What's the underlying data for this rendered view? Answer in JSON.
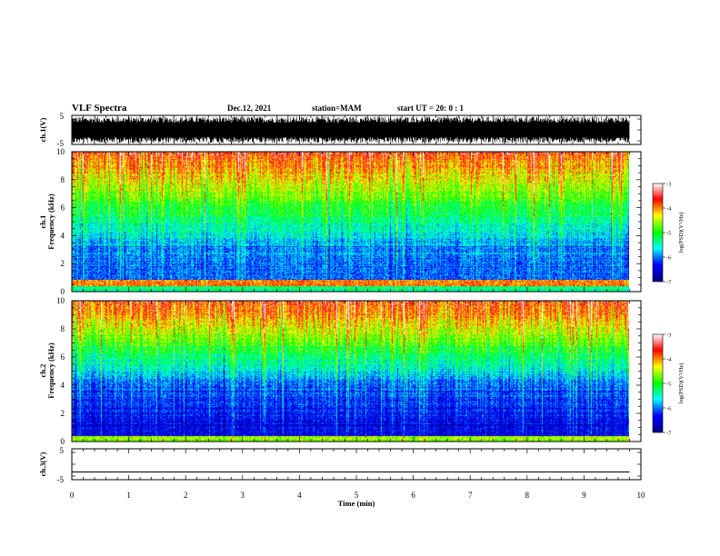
{
  "header": {
    "title": "VLF Spectra",
    "date": "Dec.12, 2021",
    "station": "station=MAM",
    "start_ut": "start  UT =   20: 0  : 1"
  },
  "chart_data": [
    {
      "type": "line",
      "panel": "ch1-waveform",
      "ylabel": "ch.1(V)",
      "ylim": [
        -5,
        5
      ],
      "yticks": [
        "5",
        "-5"
      ],
      "xlim": [
        0,
        10
      ],
      "description_values": {
        "amplitude_range_V": [
          -4.5,
          4.5
        ]
      }
    },
    {
      "type": "heatmap",
      "panel": "ch1-spectrogram",
      "ylabel_line1": "ch.1",
      "ylabel_line2": "Frequency  (kHz)",
      "ylim": [
        0,
        10
      ],
      "yticks": [
        "0",
        "2",
        "4",
        "6",
        "8",
        "10"
      ],
      "xlim": [
        0,
        10
      ],
      "colorbar": {
        "label": "log(PSD)(V²/Hz)",
        "range": [
          -7,
          -3
        ],
        "ticks": [
          "-3",
          "-4",
          "-5",
          "-6",
          "-7"
        ],
        "colors": [
          "#000080",
          "#0000ff",
          "#00ffff",
          "#00ff00",
          "#ffff00",
          "#ff0000",
          "#ffffff"
        ]
      }
    },
    {
      "type": "heatmap",
      "panel": "ch2-spectrogram",
      "ylabel_line1": "ch.2",
      "ylabel_line2": "Frequency  (kHz)",
      "ylim": [
        0,
        10
      ],
      "yticks": [
        "0",
        "2",
        "4",
        "6",
        "8",
        "10"
      ],
      "xlim": [
        0,
        10
      ],
      "colorbar": {
        "label": "log(PSD)(V²/Hz)",
        "range": [
          -7,
          -3
        ],
        "ticks": [
          "-3",
          "-4",
          "-5",
          "-6",
          "-7"
        ],
        "colors": [
          "#000080",
          "#0000ff",
          "#00ffff",
          "#00ff00",
          "#ffff00",
          "#ff0000",
          "#ffffff"
        ]
      }
    },
    {
      "type": "line",
      "panel": "ch3-waveform",
      "ylabel": "ch.3(V)",
      "ylim": [
        -5,
        5
      ],
      "yticks": [
        "5",
        "-5"
      ],
      "xlim": [
        0,
        10
      ],
      "x": [
        0,
        9.8
      ],
      "y": [
        -2.5,
        -2.5
      ]
    }
  ],
  "xaxis": {
    "label": "Time  (min)",
    "ticks": [
      "0",
      "1",
      "2",
      "3",
      "4",
      "5",
      "6",
      "7",
      "8",
      "9",
      "10"
    ],
    "data_end_min": 9.8
  }
}
